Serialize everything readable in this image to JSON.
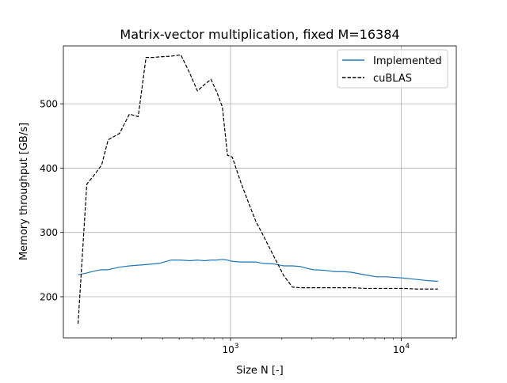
{
  "chart_data": {
    "type": "line",
    "title": "Matrix-vector multiplication, fixed M=16384",
    "xlabel": "Size N [-]",
    "ylabel": "Memory throughput [GB/s]",
    "xscale": "log",
    "xlim": [
      105,
      21000
    ],
    "ylim": [
      136,
      590
    ],
    "grid": true,
    "legend_position": "top-right",
    "x_major_ticks": [
      {
        "value": 1000,
        "base": "10",
        "exp": "3"
      },
      {
        "value": 10000,
        "base": "10",
        "exp": "4"
      }
    ],
    "x_minor_ticks": [
      200,
      300,
      400,
      500,
      600,
      700,
      800,
      900,
      2000,
      3000,
      4000,
      5000,
      6000,
      7000,
      8000,
      9000,
      20000
    ],
    "y_ticks": [
      200,
      300,
      400,
      500
    ],
    "series": [
      {
        "name": "Implemented",
        "color": "#1f77b4",
        "dash": "solid",
        "x": [
          128,
          144,
          160,
          176,
          192,
          224,
          256,
          288,
          320,
          352,
          384,
          448,
          512,
          576,
          640,
          704,
          768,
          832,
          896,
          960,
          1024,
          1152,
          1280,
          1408,
          1536,
          1792,
          2048,
          2304,
          2560,
          2816,
          3072,
          3584,
          4096,
          4608,
          5120,
          6144,
          7168,
          8192,
          10240,
          12288,
          14336,
          16384
        ],
        "y": [
          234,
          237,
          240,
          242,
          242,
          246,
          248,
          249,
          250,
          251,
          252,
          257,
          257,
          256,
          257,
          256,
          257,
          257,
          258,
          257,
          255,
          254,
          254,
          254,
          252,
          251,
          248,
          248,
          247,
          244,
          242,
          241,
          239,
          239,
          238,
          234,
          231,
          231,
          229,
          227,
          225,
          224
        ]
      },
      {
        "name": "cuBLAS",
        "color": "#000000",
        "dash": "dashed",
        "x": [
          128,
          144,
          160,
          176,
          192,
          224,
          256,
          288,
          320,
          352,
          384,
          448,
          512,
          576,
          640,
          704,
          768,
          832,
          896,
          960,
          1024,
          1152,
          1280,
          1408,
          1536,
          1792,
          2048,
          2304,
          2560,
          2816,
          3072,
          3584,
          4096,
          4608,
          5120,
          6144,
          7168,
          8192,
          10240,
          12288,
          14336,
          16384
        ],
        "y": [
          158,
          375,
          390,
          405,
          444,
          454,
          484,
          480,
          572,
          572,
          573,
          574,
          576,
          548,
          520,
          530,
          538,
          518,
          495,
          420,
          417,
          377,
          345,
          317,
          298,
          263,
          233,
          215,
          214,
          214,
          214,
          214,
          214,
          214,
          214,
          213,
          213,
          213,
          213,
          212,
          212,
          212
        ]
      }
    ]
  }
}
